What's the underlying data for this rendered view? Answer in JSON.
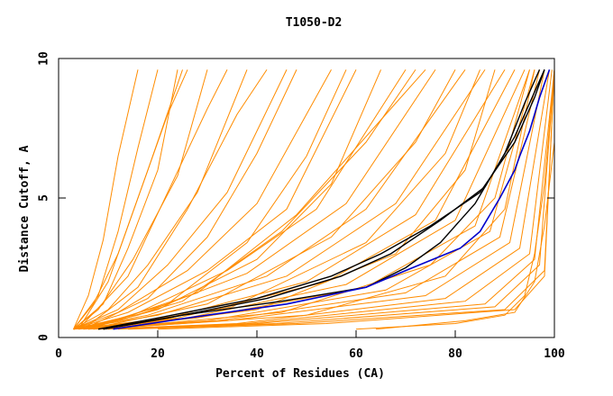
{
  "chart_data": {
    "type": "line",
    "title": "T1050-D2",
    "xlabel": "Percent of Residues (CA)",
    "ylabel": "Distance Cutoff, A",
    "xlim": [
      0,
      100
    ],
    "ylim": [
      0,
      10
    ],
    "x_ticks": [
      0,
      20,
      40,
      60,
      80,
      100
    ],
    "y_ticks": [
      0,
      5,
      10
    ],
    "grid": false,
    "legend": "none",
    "colors": {
      "background_curves": "#ff8c00",
      "highlight_black": "#000000",
      "highlight_blue": "#0000cc",
      "axis": "#000000"
    },
    "background_series": [
      {
        "name": "",
        "points": [
          [
            3,
            0.3
          ],
          [
            6,
            1.5
          ],
          [
            9,
            3.5
          ],
          [
            12,
            6.5
          ],
          [
            16,
            9.6
          ]
        ]
      },
      {
        "name": "",
        "points": [
          [
            3,
            0.3
          ],
          [
            8,
            1.5
          ],
          [
            12,
            3.8
          ],
          [
            16,
            6.8
          ],
          [
            20,
            9.6
          ]
        ]
      },
      {
        "name": "",
        "points": [
          [
            3,
            0.3
          ],
          [
            7,
            1.2
          ],
          [
            12,
            3
          ],
          [
            18,
            6
          ],
          [
            25,
            9.6
          ]
        ]
      },
      {
        "name": "",
        "points": [
          [
            3,
            0.3
          ],
          [
            9,
            1.2
          ],
          [
            14,
            3.2
          ],
          [
            20,
            6
          ],
          [
            24,
            9.6
          ]
        ]
      },
      {
        "name": "",
        "points": [
          [
            3,
            0.3
          ],
          [
            8,
            1
          ],
          [
            15,
            2.8
          ],
          [
            24,
            5.8
          ],
          [
            30,
            9.6
          ]
        ]
      },
      {
        "name": "",
        "points": [
          [
            3,
            0.3
          ],
          [
            10,
            1
          ],
          [
            18,
            2.6
          ],
          [
            28,
            5.2
          ],
          [
            38,
            9.6
          ]
        ]
      },
      {
        "name": "",
        "points": [
          [
            3,
            0.3
          ],
          [
            12,
            1
          ],
          [
            22,
            2.6
          ],
          [
            34,
            5.2
          ],
          [
            46,
            9.6
          ]
        ]
      },
      {
        "name": "",
        "points": [
          [
            3,
            0.3
          ],
          [
            12,
            0.9
          ],
          [
            26,
            2.4
          ],
          [
            40,
            4.8
          ],
          [
            55,
            9.6
          ]
        ]
      },
      {
        "name": "",
        "points": [
          [
            3,
            0.3
          ],
          [
            14,
            0.9
          ],
          [
            30,
            2.4
          ],
          [
            46,
            4.6
          ],
          [
            60,
            9.6
          ]
        ]
      },
      {
        "name": "",
        "points": [
          [
            3,
            0.3
          ],
          [
            15,
            0.8
          ],
          [
            34,
            2.4
          ],
          [
            52,
            4.6
          ],
          [
            70,
            9.6
          ]
        ]
      },
      {
        "name": "",
        "points": [
          [
            3,
            0.3
          ],
          [
            16,
            0.8
          ],
          [
            38,
            2.3
          ],
          [
            58,
            4.8
          ],
          [
            76,
            9.6
          ]
        ]
      },
      {
        "name": "",
        "points": [
          [
            3,
            0.3
          ],
          [
            18,
            0.8
          ],
          [
            42,
            2.2
          ],
          [
            62,
            4.6
          ],
          [
            82,
            9.6
          ]
        ]
      },
      {
        "name": "",
        "points": [
          [
            3,
            0.3
          ],
          [
            20,
            0.8
          ],
          [
            46,
            2.2
          ],
          [
            68,
            4.8
          ],
          [
            86,
            9.6
          ]
        ]
      },
      {
        "name": "",
        "points": [
          [
            3,
            0.3
          ],
          [
            22,
            0.7
          ],
          [
            50,
            2
          ],
          [
            72,
            4.4
          ],
          [
            90,
            9.6
          ]
        ]
      },
      {
        "name": "",
        "points": [
          [
            3,
            0.3
          ],
          [
            24,
            0.7
          ],
          [
            54,
            2
          ],
          [
            76,
            4.2
          ],
          [
            92,
            9.6
          ]
        ]
      },
      {
        "name": "",
        "points": [
          [
            3,
            0.3
          ],
          [
            26,
            0.7
          ],
          [
            58,
            1.9
          ],
          [
            80,
            4.2
          ],
          [
            94,
            9.6
          ]
        ]
      },
      {
        "name": "",
        "points": [
          [
            4,
            0.3
          ],
          [
            28,
            0.7
          ],
          [
            62,
            1.8
          ],
          [
            84,
            4
          ],
          [
            95,
            9.6
          ]
        ]
      },
      {
        "name": "",
        "points": [
          [
            5,
            0.3
          ],
          [
            30,
            0.6
          ],
          [
            66,
            1.7
          ],
          [
            87,
            3.8
          ],
          [
            96,
            9.6
          ]
        ]
      },
      {
        "name": "",
        "points": [
          [
            6,
            0.3
          ],
          [
            32,
            0.6
          ],
          [
            70,
            1.6
          ],
          [
            89,
            3.6
          ],
          [
            97,
            9.6
          ]
        ]
      },
      {
        "name": "",
        "points": [
          [
            7,
            0.3
          ],
          [
            34,
            0.6
          ],
          [
            74,
            1.5
          ],
          [
            91,
            3.4
          ],
          [
            98,
            9.6
          ]
        ]
      },
      {
        "name": "",
        "points": [
          [
            8,
            0.3
          ],
          [
            36,
            0.5
          ],
          [
            78,
            1.4
          ],
          [
            93,
            3.2
          ],
          [
            99,
            9.6
          ]
        ]
      },
      {
        "name": "",
        "points": [
          [
            9,
            0.3
          ],
          [
            38,
            0.5
          ],
          [
            82,
            1.3
          ],
          [
            95,
            3
          ],
          [
            99.5,
            9.6
          ]
        ]
      },
      {
        "name": "",
        "points": [
          [
            10,
            0.3
          ],
          [
            40,
            0.5
          ],
          [
            86,
            1.2
          ],
          [
            96,
            2.8
          ],
          [
            100,
            9.6
          ]
        ]
      },
      {
        "name": "",
        "points": [
          [
            12,
            0.3
          ],
          [
            44,
            0.5
          ],
          [
            88,
            1.1
          ],
          [
            97,
            2.6
          ],
          [
            100,
            9.6
          ]
        ]
      },
      {
        "name": "",
        "points": [
          [
            14,
            0.3
          ],
          [
            48,
            0.5
          ],
          [
            90,
            1
          ],
          [
            98,
            2.4
          ],
          [
            100,
            9.6
          ]
        ]
      },
      {
        "name": "",
        "points": [
          [
            20,
            0.3
          ],
          [
            54,
            0.5
          ],
          [
            92,
            1
          ],
          [
            98,
            2.2
          ],
          [
            100,
            9.6
          ]
        ]
      },
      {
        "name": "",
        "points": [
          [
            5,
            0.3
          ],
          [
            20,
            1
          ],
          [
            40,
            2.8
          ],
          [
            55,
            5.5
          ],
          [
            65,
            9.6
          ]
        ]
      },
      {
        "name": "",
        "points": [
          [
            5,
            0.3
          ],
          [
            22,
            1.2
          ],
          [
            38,
            3.4
          ],
          [
            50,
            6.5
          ],
          [
            58,
            9.6
          ]
        ]
      },
      {
        "name": "",
        "points": [
          [
            5,
            0.3
          ],
          [
            18,
            1.4
          ],
          [
            30,
            3.6
          ],
          [
            40,
            6.6
          ],
          [
            48,
            9.6
          ]
        ]
      },
      {
        "name": "",
        "points": [
          [
            6,
            0.3
          ],
          [
            25,
            1.3
          ],
          [
            45,
            3.8
          ],
          [
            62,
            7
          ],
          [
            72,
            9.6
          ]
        ]
      },
      {
        "name": "",
        "points": [
          [
            6,
            0.3
          ],
          [
            30,
            1.2
          ],
          [
            55,
            3.6
          ],
          [
            72,
            7
          ],
          [
            80,
            9.6
          ]
        ]
      },
      {
        "name": "",
        "points": [
          [
            7,
            0.3
          ],
          [
            35,
            1.1
          ],
          [
            62,
            3.4
          ],
          [
            78,
            6.6
          ],
          [
            85,
            9.6
          ]
        ]
      },
      {
        "name": "",
        "points": [
          [
            8,
            0.3
          ],
          [
            40,
            1
          ],
          [
            68,
            3
          ],
          [
            82,
            6
          ],
          [
            88,
            9.6
          ]
        ]
      },
      {
        "name": "",
        "points": [
          [
            4,
            0.3
          ],
          [
            10,
            2
          ],
          [
            16,
            5
          ],
          [
            22,
            8
          ],
          [
            26,
            9.6
          ]
        ]
      },
      {
        "name": "",
        "points": [
          [
            4,
            0.3
          ],
          [
            14,
            2.2
          ],
          [
            22,
            5.2
          ],
          [
            30,
            8.2
          ],
          [
            34,
            9.6
          ]
        ]
      },
      {
        "name": "",
        "points": [
          [
            60,
            0.3
          ],
          [
            80,
            0.5
          ],
          [
            90,
            0.8
          ],
          [
            94,
            1.5
          ],
          [
            96,
            3
          ],
          [
            98,
            5.5
          ],
          [
            100,
            9.6
          ]
        ]
      },
      {
        "name": "",
        "points": [
          [
            64,
            0.3
          ],
          [
            82,
            0.6
          ],
          [
            92,
            0.9
          ],
          [
            96,
            2
          ],
          [
            98,
            4
          ],
          [
            100,
            7
          ]
        ]
      },
      {
        "name": "",
        "points": [
          [
            8,
            0.3
          ],
          [
            45,
            0.9
          ],
          [
            75,
            2.6
          ],
          [
            88,
            5
          ],
          [
            95,
            9.6
          ]
        ]
      },
      {
        "name": "",
        "points": [
          [
            8,
            0.3
          ],
          [
            50,
            0.8
          ],
          [
            78,
            2.2
          ],
          [
            90,
            4.6
          ],
          [
            96,
            9.6
          ]
        ]
      },
      {
        "name": "",
        "points": [
          [
            6,
            0.3
          ],
          [
            28,
            1.6
          ],
          [
            48,
            4.4
          ],
          [
            66,
            8
          ],
          [
            74,
            9.6
          ]
        ]
      },
      {
        "name": "",
        "points": [
          [
            5,
            0.3
          ],
          [
            16,
            1.8
          ],
          [
            26,
            4.6
          ],
          [
            36,
            8
          ],
          [
            42,
            9.6
          ]
        ]
      }
    ],
    "highlight_series": [
      {
        "name": "",
        "color": "black",
        "points": [
          [
            8,
            0.3
          ],
          [
            20,
            0.7
          ],
          [
            40,
            1.4
          ],
          [
            55,
            2.2
          ],
          [
            65,
            3
          ],
          [
            75,
            4
          ],
          [
            85,
            5.2
          ],
          [
            92,
            7
          ],
          [
            96,
            8.6
          ],
          [
            98,
            9.6
          ]
        ]
      },
      {
        "name": "",
        "color": "black",
        "points": [
          [
            9,
            0.3
          ],
          [
            22,
            0.7
          ],
          [
            42,
            1.4
          ],
          [
            57,
            2.2
          ],
          [
            67,
            3
          ],
          [
            77,
            4.2
          ],
          [
            86,
            5.4
          ],
          [
            92,
            7.2
          ],
          [
            96,
            8.8
          ],
          [
            98,
            9.6
          ]
        ]
      },
      {
        "name": "",
        "color": "black",
        "points": [
          [
            9,
            0.3
          ],
          [
            25,
            0.8
          ],
          [
            45,
            1.3
          ],
          [
            62,
            1.8
          ],
          [
            70,
            2.5
          ],
          [
            77,
            3.4
          ],
          [
            84,
            4.8
          ],
          [
            90,
            6.6
          ],
          [
            94,
            8.4
          ],
          [
            97,
            9.6
          ]
        ]
      },
      {
        "name": "",
        "color": "blue",
        "points": [
          [
            11,
            0.3
          ],
          [
            26,
            0.7
          ],
          [
            46,
            1.2
          ],
          [
            62,
            1.8
          ],
          [
            70,
            2.4
          ],
          [
            81,
            3.2
          ],
          [
            85,
            3.8
          ],
          [
            89,
            5
          ],
          [
            92,
            6
          ],
          [
            93,
            6.5
          ],
          [
            95,
            7.4
          ],
          [
            97,
            8.6
          ],
          [
            99,
            9.6
          ]
        ]
      }
    ]
  }
}
